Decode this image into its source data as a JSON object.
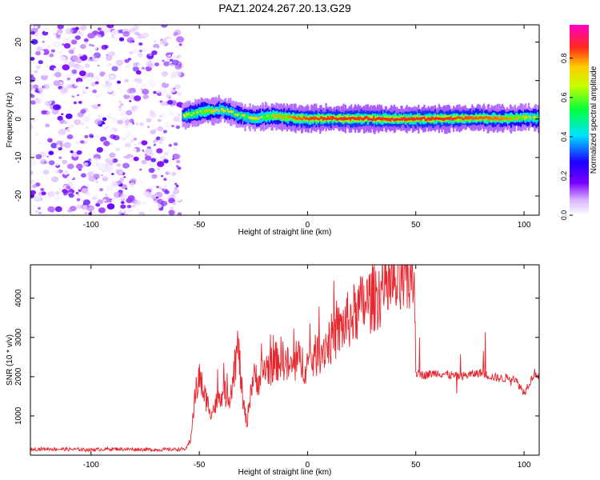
{
  "figure": {
    "title": "PAZ1.2024.267.20.13.G29"
  },
  "chart_data": [
    {
      "type": "heatmap",
      "title": "PAZ1.2024.267.20.13.G29",
      "xlabel": "Height of straight line (km)",
      "ylabel": "Frequency (Hz)",
      "xlim": [
        -128,
        107
      ],
      "ylim": [
        -25,
        24.5
      ],
      "xticks": [
        -100,
        -50,
        0,
        50,
        100
      ],
      "yticks": [
        -20,
        -10,
        0,
        10,
        20
      ],
      "colorbar": {
        "label": "Normalized spectral amplitude",
        "range": [
          0,
          0.97
        ],
        "ticks": [
          0.0,
          0.2,
          0.4,
          0.6,
          0.8
        ],
        "tick_labels": [
          "0.0",
          "0.2",
          "0.4",
          "0.6",
          "0.8"
        ],
        "colormap": "rainbow (white → purple → blue → cyan → green → yellow → red → magenta)"
      },
      "regions": [
        {
          "name_hidden": true,
          "x_range": [
            -128,
            -58
          ],
          "y_range": [
            -25,
            24.5
          ],
          "description_values": {
            "amplitude_range": [
              0.0,
              0.15
            ]
          }
        },
        {
          "name_hidden": true,
          "x_range": [
            -58,
            107
          ],
          "line_frequency": 0,
          "amplitude_range": [
            0.2,
            0.9
          ]
        }
      ],
      "ridge": {
        "x": [
          -58,
          -52,
          -48,
          -44,
          -40,
          -36,
          -32,
          -28,
          -24,
          -20,
          -16,
          -12,
          -8,
          -4,
          0,
          10,
          20,
          30,
          40,
          50,
          60,
          70,
          80,
          90,
          100,
          107
        ],
        "y": [
          0.8,
          1.5,
          2.2,
          2.0,
          2.5,
          1.8,
          1.0,
          0.5,
          0.2,
          0.6,
          0.8,
          0.5,
          0.4,
          0.2,
          0.1,
          0.2,
          0.1,
          0.1,
          0.0,
          0.0,
          0.1,
          0.2,
          0.3,
          0.1,
          0.4,
          0.2
        ],
        "amplitude": [
          0.3,
          0.5,
          0.6,
          0.55,
          0.5,
          0.45,
          0.4,
          0.45,
          0.5,
          0.55,
          0.6,
          0.65,
          0.7,
          0.75,
          0.8,
          0.85,
          0.85,
          0.85,
          0.85,
          0.85,
          0.85,
          0.8,
          0.75,
          0.7,
          0.55,
          0.5
        ]
      },
      "grid": false
    },
    {
      "type": "line",
      "xlabel": "Height of straight line (km)",
      "ylabel": "SNR (10 * v/v)",
      "xlim": [
        -128,
        107
      ],
      "ylim": [
        0,
        4850
      ],
      "xticks": [
        -100,
        -50,
        0,
        50,
        100
      ],
      "yticks": [
        1000,
        2000,
        3000,
        4000
      ],
      "color": "#e8262e",
      "series": [
        {
          "x": [
            -128,
            -120,
            -110,
            -100,
            -90,
            -80,
            -70,
            -60,
            -56,
            -54,
            -52,
            -50,
            -48,
            -46,
            -44,
            -40,
            -36,
            -32,
            -30,
            -28,
            -26,
            -24,
            -22,
            -20,
            -16,
            -12,
            -8,
            -4,
            0,
            5,
            10,
            15,
            20,
            25,
            30,
            35,
            40,
            45,
            48,
            49.5,
            50,
            52,
            55,
            60,
            65,
            70,
            75,
            80,
            85,
            90,
            95,
            100,
            105,
            107
          ],
          "y": [
            150,
            160,
            150,
            140,
            160,
            150,
            140,
            150,
            160,
            400,
            1500,
            2000,
            1600,
            1300,
            1100,
            1600,
            1500,
            2800,
            1400,
            800,
            1800,
            2000,
            1900,
            2200,
            2300,
            2500,
            2200,
            2400,
            2300,
            2600,
            2900,
            3200,
            3500,
            3800,
            4000,
            4200,
            4300,
            4400,
            4450,
            4500,
            2100,
            2050,
            2050,
            2100,
            2050,
            2000,
            2050,
            2100,
            2000,
            1950,
            2000,
            1600,
            2100,
            2000
          ]
        }
      ],
      "grid": false
    }
  ]
}
